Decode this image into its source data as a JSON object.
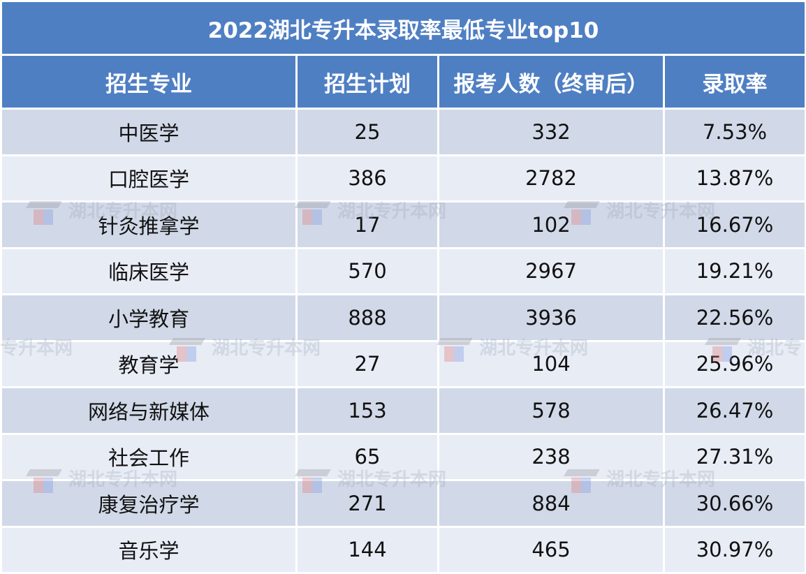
{
  "table": {
    "title": "2022湖北专升本录取率最低专业top10",
    "headers": [
      "招生专业",
      "招生计划",
      "报考人数（终审后）",
      "录取率"
    ],
    "rows": [
      [
        "中医学",
        "25",
        "332",
        "7.53%"
      ],
      [
        "口腔医学",
        "386",
        "2782",
        "13.87%"
      ],
      [
        "针灸推拿学",
        "17",
        "102",
        "16.67%"
      ],
      [
        "临床医学",
        "570",
        "2967",
        "19.21%"
      ],
      [
        "小学教育",
        "888",
        "3936",
        "22.56%"
      ],
      [
        "教育学",
        "27",
        "104",
        "25.96%"
      ],
      [
        "网络与新媒体",
        "153",
        "578",
        "26.47%"
      ],
      [
        "社会工作",
        "65",
        "238",
        "27.31%"
      ],
      [
        "康复治疗学",
        "271",
        "884",
        "30.66%"
      ],
      [
        "音乐学",
        "144",
        "465",
        "30.97%"
      ]
    ]
  },
  "watermark": {
    "text": "湖北专升本网",
    "partial_left": "专升本网",
    "partial_right": "湖北专",
    "icon": "graduation-cap-icon"
  },
  "colors": {
    "header_bg": "#4f7fc3",
    "row_dark": "#d1d9e8",
    "row_light": "#e8ecf5"
  }
}
